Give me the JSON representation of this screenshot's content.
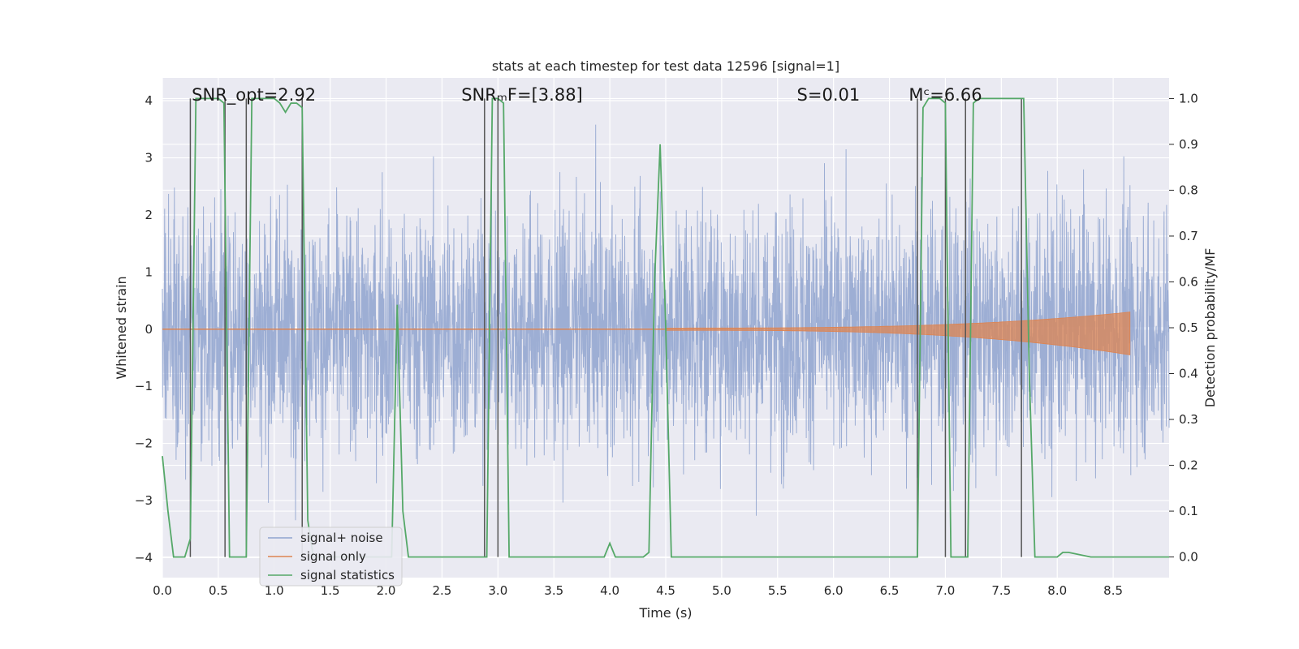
{
  "chart_data": {
    "type": "line",
    "title": "stats at each timestep for test data 12596 [signal=1]",
    "xlabel": "Time (s)",
    "ylabel": "Whitened strain",
    "y2label": "Detection probability/MF",
    "xlim": [
      0.0,
      9.0
    ],
    "ylim": [
      -4.35,
      4.4
    ],
    "y2lim": [
      -0.045,
      1.045
    ],
    "xticks": [
      0.0,
      0.5,
      1.0,
      1.5,
      2.0,
      2.5,
      3.0,
      3.5,
      4.0,
      4.5,
      5.0,
      5.5,
      6.0,
      6.5,
      7.0,
      7.5,
      8.0,
      8.5
    ],
    "yticks": [
      4,
      3,
      2,
      1,
      0,
      -1,
      -2,
      -3,
      -4
    ],
    "ytick_labels": [
      "4",
      "3",
      "2",
      "1",
      "0",
      "−1",
      "−2",
      "−3",
      "−4"
    ],
    "y2ticks": [
      1.0,
      0.9,
      0.8,
      0.7,
      0.6,
      0.5,
      0.4,
      0.3,
      0.2,
      0.1,
      0.0
    ],
    "y2tick_labels": [
      "1.0",
      "0.9",
      "0.8",
      "0.7",
      "0.6",
      "0.5",
      "0.4",
      "0.3",
      "0.2",
      "0.1",
      "0.0"
    ],
    "grid": true,
    "legend_position": "bottom-left",
    "annotations": [
      {
        "text": "SNR_opt=2.92",
        "x": 0.19
      },
      {
        "text": "SNRₘF=[3.88]",
        "x": 2.6
      },
      {
        "text": "S=0.01",
        "x": 5.6
      },
      {
        "text": "Mᶜ=6.66",
        "x": 6.6
      }
    ],
    "series": [
      {
        "name": "signal+ noise",
        "color": "#8fa3cf",
        "axis": "left",
        "description": "whitened noisy strain, approx. gaussian, range about -4 to 4",
        "envelope_sigma": 1.0
      },
      {
        "name": "signal only",
        "color": "#dd8452",
        "axis": "left",
        "description": "chirp that grows toward merger near 8.65 s",
        "envelope_start": 4.5,
        "envelope_end": 8.65,
        "envelope_max_pos": 0.3,
        "envelope_max_neg": -0.45
      },
      {
        "name": "signal statistics",
        "color": "#55a868",
        "axis": "right",
        "x": [
          0.0,
          0.05,
          0.1,
          0.15,
          0.2,
          0.25,
          0.3,
          0.35,
          0.4,
          0.45,
          0.5,
          0.55,
          0.6,
          0.65,
          0.7,
          0.75,
          0.8,
          0.85,
          0.9,
          0.95,
          1.0,
          1.05,
          1.1,
          1.15,
          1.2,
          1.25,
          1.3,
          1.35,
          2.0,
          2.05,
          2.1,
          2.15,
          2.2,
          2.25,
          2.3,
          2.85,
          2.9,
          2.95,
          3.0,
          3.05,
          3.1,
          3.9,
          3.95,
          4.0,
          4.05,
          4.1,
          4.3,
          4.35,
          4.4,
          4.45,
          4.5,
          4.55,
          6.75,
          6.8,
          6.85,
          6.9,
          6.95,
          7.0,
          7.05,
          7.1,
          7.15,
          7.2,
          7.25,
          7.3,
          7.35,
          7.4,
          7.65,
          7.7,
          7.75,
          7.8,
          7.85,
          8.0,
          8.05,
          8.1,
          8.3,
          9.0
        ],
        "values": [
          0.22,
          0.1,
          0.0,
          0.0,
          0.0,
          0.04,
          1.0,
          1.0,
          1.0,
          1.0,
          1.0,
          0.99,
          0.0,
          0.0,
          0.0,
          0.0,
          1.0,
          1.0,
          1.0,
          1.0,
          1.0,
          0.99,
          0.97,
          0.99,
          0.99,
          0.98,
          0.08,
          0.0,
          0.0,
          0.0,
          0.55,
          0.1,
          0.0,
          0.0,
          0.0,
          0.0,
          0.0,
          1.0,
          1.0,
          0.99,
          0.0,
          0.0,
          0.0,
          0.03,
          0.0,
          0.0,
          0.0,
          0.01,
          0.6,
          0.9,
          0.5,
          0.0,
          0.0,
          0.98,
          1.0,
          1.0,
          1.0,
          0.99,
          0.0,
          0.0,
          0.0,
          0.0,
          0.99,
          1.0,
          1.0,
          1.0,
          1.0,
          1.0,
          0.4,
          0.0,
          0.0,
          0.0,
          0.01,
          0.01,
          0.0,
          0.0
        ]
      }
    ],
    "vertical_markers": [
      0.25,
      0.56,
      0.75,
      1.25,
      2.88,
      3.0,
      6.75,
      7.0,
      7.18,
      7.68
    ]
  }
}
